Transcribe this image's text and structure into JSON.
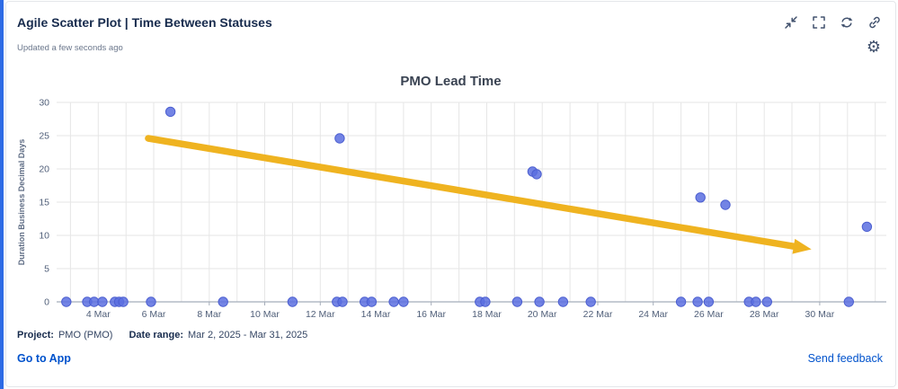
{
  "header": {
    "title": "Agile Scatter Plot | Time Between Statuses",
    "updated": "Updated a few seconds ago",
    "gear_glyph": "⚙",
    "icons": [
      "collapse-icon",
      "fullscreen-icon",
      "refresh-icon",
      "link-icon",
      "settings-gear-icon"
    ]
  },
  "footer": {
    "project_label": "Project:",
    "project_value": "PMO (PMO)",
    "date_range_label": "Date range:",
    "date_range_value": "Mar 2, 2025 - Mar 31, 2025",
    "go_to_app": "Go to App",
    "send_feedback": "Send feedback"
  },
  "colors": {
    "title_navy": "#172b4d",
    "link_blue": "#0052cc",
    "icon_gray": "#42526e",
    "point": "#5a6ee0",
    "point_edge": "#4c5fd0",
    "trend": "#efb320",
    "grid": "#e6e6e6",
    "axis": "#a5adba"
  },
  "chart_data": {
    "type": "scatter",
    "title": "PMO Lead Time",
    "xlabel": "",
    "ylabel": "Duration Business Decimal Days",
    "x_unit": "day of March 2025",
    "xlim": [
      2.5,
      32.4
    ],
    "ylim": [
      0,
      30
    ],
    "grid": true,
    "legend": "none",
    "y_ticks": [
      0,
      5,
      10,
      15,
      20,
      25,
      30
    ],
    "x_ticks": [
      {
        "day": 4,
        "label": "4 Mar"
      },
      {
        "day": 6,
        "label": "6 Mar"
      },
      {
        "day": 8,
        "label": "8 Mar"
      },
      {
        "day": 10,
        "label": "10 Mar"
      },
      {
        "day": 12,
        "label": "12 Mar"
      },
      {
        "day": 14,
        "label": "14 Mar"
      },
      {
        "day": 16,
        "label": "16 Mar"
      },
      {
        "day": 18,
        "label": "18 Mar"
      },
      {
        "day": 20,
        "label": "20 Mar"
      },
      {
        "day": 22,
        "label": "22 Mar"
      },
      {
        "day": 24,
        "label": "24 Mar"
      },
      {
        "day": 26,
        "label": "26 Mar"
      },
      {
        "day": 28,
        "label": "28 Mar"
      },
      {
        "day": 30,
        "label": "30 Mar"
      }
    ],
    "points": [
      [
        2.85,
        0
      ],
      [
        3.6,
        0
      ],
      [
        3.85,
        0
      ],
      [
        4.15,
        0
      ],
      [
        4.6,
        0
      ],
      [
        4.75,
        0
      ],
      [
        4.9,
        0
      ],
      [
        5.9,
        0
      ],
      [
        6.6,
        28.6
      ],
      [
        8.5,
        0
      ],
      [
        11.0,
        0
      ],
      [
        12.6,
        0
      ],
      [
        12.7,
        24.6
      ],
      [
        12.8,
        0
      ],
      [
        13.6,
        0
      ],
      [
        13.85,
        0
      ],
      [
        14.65,
        0
      ],
      [
        15.0,
        0
      ],
      [
        17.75,
        0
      ],
      [
        17.95,
        0
      ],
      [
        19.1,
        0
      ],
      [
        19.65,
        19.6
      ],
      [
        19.8,
        19.2
      ],
      [
        19.9,
        0
      ],
      [
        20.75,
        0
      ],
      [
        21.75,
        0
      ],
      [
        25.0,
        0
      ],
      [
        25.6,
        0
      ],
      [
        25.7,
        15.7
      ],
      [
        26.0,
        0
      ],
      [
        26.6,
        14.6
      ],
      [
        27.45,
        0
      ],
      [
        27.7,
        0
      ],
      [
        28.1,
        0
      ],
      [
        31.05,
        0
      ],
      [
        31.7,
        11.3
      ]
    ],
    "trend_arrow": {
      "x1": 5.8,
      "y1": 24.6,
      "x2": 29.7,
      "y2": 7.9
    }
  }
}
